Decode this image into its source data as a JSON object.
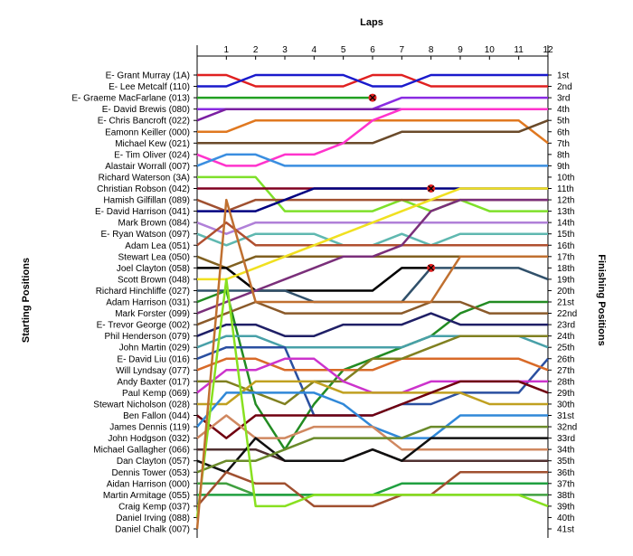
{
  "chart_data": {
    "type": "line",
    "title": "",
    "xlabel": "Laps",
    "ylabel_left": "Starting Positions",
    "ylabel_right": "Finishing Positions",
    "laps": [
      1,
      2,
      3,
      4,
      5,
      6,
      7,
      8,
      9,
      10,
      11,
      12
    ],
    "starting_labels": [
      "E- Grant Murray (1A)",
      "E- Lee Metcalf (110)",
      "E- Graeme MacFarlane (013)",
      "E- David Brewis (080)",
      "E- Chris Bancroft (022)",
      "Eamonn Keiller (000)",
      "Michael Kew (021)",
      "E- Tim Oliver (024)",
      "Alastair Worrall (007)",
      "Richard Waterson (3A)",
      "Christian Robson (042)",
      "Hamish Gilfillan (089)",
      "E- David Harrison (041)",
      "Mark Brown (084)",
      "E- Ryan Watson (097)",
      "Adam Lea (051)",
      "Stewart Lea (050)",
      "Joel Clayton (058)",
      "Scott Brown (048)",
      "Richard Hinchliffe (027)",
      "Adam Harrison (031)",
      "Mark Forster (099)",
      "E- Trevor George (002)",
      "Phil Henderson (079)",
      "John Martin (029)",
      "E- David Liu (016)",
      "Will Lyndsay (077)",
      "Andy Baxter (017)",
      "Paul Kemp (069)",
      "Stewart Nicholson (028)",
      "Ben Fallon (044)",
      "James Dennis (119)",
      "John Hodgson (032)",
      "Michael Gallagher (066)",
      "Dan Clayton (057)",
      "Dennis Tower (053)",
      "Aidan Harrison (000)",
      "Martin Armitage (055)",
      "Craig Kemp (037)",
      "Daniel Irving (088)",
      "Daniel Chalk (007)"
    ],
    "finishing_labels": [
      "1st",
      "2nd",
      "3rd",
      "4th",
      "5th",
      "6th",
      "7th",
      "8th",
      "9th",
      "10th",
      "11th",
      "12th",
      "13th",
      "14th",
      "15th",
      "16th",
      "17th",
      "18th",
      "19th",
      "20th",
      "21st",
      "22nd",
      "23rd",
      "24th",
      "25th",
      "26th",
      "27th",
      "28th",
      "29th",
      "30th",
      "31st",
      "32nd",
      "33rd",
      "34th",
      "35th",
      "36th",
      "37th",
      "38th",
      "39th",
      "40th",
      "41st"
    ],
    "series": [
      {
        "start": 1,
        "color": "#e02020",
        "positions": [
          1,
          2,
          2,
          2,
          2,
          1,
          1,
          2,
          2,
          2,
          2
        ],
        "end": 2
      },
      {
        "start": 2,
        "color": "#1a1acc",
        "positions": [
          2,
          1,
          1,
          1,
          1,
          2,
          2,
          1,
          1,
          1,
          1
        ],
        "end": 1
      },
      {
        "start": 3,
        "color": "#22a022",
        "positions": [
          3,
          3,
          3,
          3,
          3
        ],
        "out": 6,
        "end": null
      },
      {
        "start": 4,
        "color": "#8a2be2",
        "positions": [
          4,
          4,
          4,
          4,
          4,
          4,
          3,
          3,
          3,
          3,
          3
        ],
        "end": 3
      },
      {
        "start": 5,
        "color": "#7a1fa2",
        "positions": [
          4,
          4,
          4,
          4,
          4,
          4,
          4,
          4,
          4,
          4,
          4
        ],
        "end": 4
      },
      {
        "start": 6,
        "color": "#e07820",
        "positions": [
          6,
          5,
          5,
          5,
          5,
          5,
          5,
          5,
          5,
          5,
          5
        ],
        "end": 7
      },
      {
        "start": 7,
        "color": "#6a4a2a",
        "positions": [
          7,
          7,
          7,
          7,
          7,
          7,
          6,
          6,
          6,
          6,
          6
        ],
        "end": 5
      },
      {
        "start": 8,
        "color": "#ff33cc",
        "positions": [
          9,
          9,
          8,
          8,
          7,
          5,
          4,
          4,
          4,
          4,
          4
        ],
        "end": 4
      },
      {
        "start": 9,
        "color": "#3a8ee0",
        "positions": [
          8,
          8,
          9,
          9,
          9,
          9,
          9,
          9,
          9,
          9,
          9
        ],
        "end": 9
      },
      {
        "start": 10,
        "color": "#7ee02a",
        "positions": [
          10,
          10,
          13,
          13,
          13,
          13,
          12,
          13,
          12,
          13,
          13
        ],
        "end": 13
      },
      {
        "start": 11,
        "color": "#800020",
        "positions": [
          11,
          11,
          11,
          11,
          11,
          11,
          11
        ],
        "out": 8,
        "end": null
      },
      {
        "start": 12,
        "color": "#a05030",
        "positions": [
          13,
          12,
          12,
          12,
          12,
          12,
          12,
          12,
          12,
          12,
          12
        ],
        "end": 12
      },
      {
        "start": 13,
        "color": "#000080",
        "positions": [
          13,
          13,
          12,
          11,
          11,
          11,
          11,
          11,
          11,
          11,
          11
        ],
        "end": 11
      },
      {
        "start": 14,
        "color": "#b080d8",
        "positions": [
          15,
          14,
          14,
          14,
          14,
          14,
          14,
          14,
          14,
          14,
          14
        ],
        "end": 14
      },
      {
        "start": 15,
        "color": "#5fb8b0",
        "positions": [
          16,
          15,
          15,
          15,
          16,
          16,
          15,
          16,
          15,
          15,
          15
        ],
        "end": 15
      },
      {
        "start": 16,
        "color": "#b05030",
        "positions": [
          14,
          16,
          16,
          16,
          16,
          16,
          16,
          16,
          16,
          16,
          16
        ],
        "end": 16
      },
      {
        "start": 17,
        "color": "#806020",
        "positions": [
          18,
          17,
          17,
          17,
          17,
          17,
          17,
          17,
          17,
          17,
          17
        ],
        "end": 17
      },
      {
        "start": 18,
        "color": "#000000",
        "positions": [
          18,
          20,
          20,
          20,
          20,
          20,
          18
        ],
        "out": 8,
        "end": null
      },
      {
        "start": 19,
        "color": "#f0e020",
        "positions": [
          19,
          18,
          17,
          16,
          15,
          14,
          13,
          12,
          11,
          11,
          11
        ],
        "end": 11
      },
      {
        "start": 20,
        "color": "#30506a",
        "positions": [
          20,
          20,
          20,
          21,
          21,
          21,
          21,
          18,
          18,
          18,
          18
        ],
        "end": 19
      },
      {
        "start": 21,
        "color": "#228b22",
        "positions": [
          20,
          30,
          34,
          30,
          27,
          26,
          25,
          24,
          22,
          21,
          21
        ],
        "end": 21
      },
      {
        "start": 22,
        "color": "#7a2f7a",
        "positions": [
          21,
          20,
          19,
          18,
          17,
          17,
          16,
          13,
          12,
          12,
          12
        ],
        "end": 12
      },
      {
        "start": 23,
        "color": "#8a5a2a",
        "positions": [
          22,
          21,
          22,
          22,
          22,
          22,
          22,
          21,
          21,
          22,
          22
        ],
        "end": 22
      },
      {
        "start": 24,
        "color": "#1f1f66",
        "positions": [
          23,
          23,
          24,
          24,
          23,
          23,
          23,
          22,
          23,
          23,
          23
        ],
        "end": 23
      },
      {
        "start": 25,
        "color": "#48a0a8",
        "positions": [
          24,
          24,
          25,
          25,
          25,
          25,
          25,
          24,
          24,
          24,
          24
        ],
        "end": 25
      },
      {
        "start": 26,
        "color": "#2a4fa0",
        "positions": [
          25,
          25,
          25,
          31,
          31,
          31,
          30,
          30,
          29,
          29,
          29
        ],
        "end": 26
      },
      {
        "start": 27,
        "color": "#d86a28",
        "positions": [
          26,
          26,
          27,
          27,
          27,
          27,
          26,
          26,
          26,
          26,
          26
        ],
        "end": 27
      },
      {
        "start": 28,
        "color": "#808020",
        "positions": [
          28,
          29,
          30,
          28,
          28,
          26,
          26,
          25,
          24,
          24,
          24
        ],
        "end": 24
      },
      {
        "start": 29,
        "color": "#cc33cc",
        "positions": [
          27,
          27,
          26,
          26,
          28,
          29,
          29,
          28,
          28,
          28,
          28
        ],
        "end": 28
      },
      {
        "start": 30,
        "color": "#c0a020",
        "positions": [
          30,
          28,
          28,
          28,
          29,
          29,
          29,
          29,
          29,
          30,
          30
        ],
        "end": 30
      },
      {
        "start": 31,
        "color": "#700010",
        "positions": [
          33,
          31,
          31,
          31,
          31,
          31,
          30,
          29,
          28,
          28,
          28
        ],
        "end": 29
      },
      {
        "start": 32,
        "color": "#3088d8",
        "positions": [
          29,
          29,
          29,
          29,
          30,
          32,
          33,
          33,
          31,
          31,
          31
        ],
        "end": 31
      },
      {
        "start": 33,
        "color": "#d08860",
        "positions": [
          31,
          33,
          33,
          32,
          32,
          32,
          34,
          34,
          34,
          34,
          34
        ],
        "end": 34
      },
      {
        "start": 34,
        "color": "#503030",
        "positions": [
          34,
          34,
          35,
          35,
          35,
          34,
          35,
          35,
          35,
          35,
          35
        ],
        "end": 35
      },
      {
        "start": 35,
        "color": "#101010",
        "positions": [
          36,
          33,
          35,
          35,
          35,
          34,
          35,
          33,
          33,
          33,
          33
        ],
        "end": 33
      },
      {
        "start": 36,
        "color": "#6a8a2a",
        "positions": [
          35,
          35,
          34,
          33,
          33,
          33,
          33,
          32,
          32,
          32,
          32
        ],
        "end": 32
      },
      {
        "start": 37,
        "color": "#40a040",
        "positions": [
          37,
          38,
          38,
          38,
          38,
          38,
          38,
          38,
          38,
          38,
          38
        ],
        "end": 38
      },
      {
        "start": 38,
        "color": "#20a040",
        "positions": [
          38,
          38,
          38,
          38,
          38,
          38,
          37,
          37,
          37,
          37,
          37
        ],
        "end": 37
      },
      {
        "start": 39,
        "color": "#a05030",
        "positions": [
          36,
          37,
          37,
          39,
          39,
          39,
          38,
          38,
          36,
          36,
          36
        ],
        "end": 36
      },
      {
        "start": 40,
        "color": "#88e020",
        "positions": [
          19,
          39,
          39,
          38,
          38,
          38,
          38,
          38,
          38,
          38,
          38
        ],
        "end": 39
      },
      {
        "start": 41,
        "color": "#c07030",
        "positions": [
          12,
          21,
          21,
          21,
          21,
          21,
          21,
          21,
          17,
          17,
          17
        ],
        "end": 17
      }
    ]
  }
}
